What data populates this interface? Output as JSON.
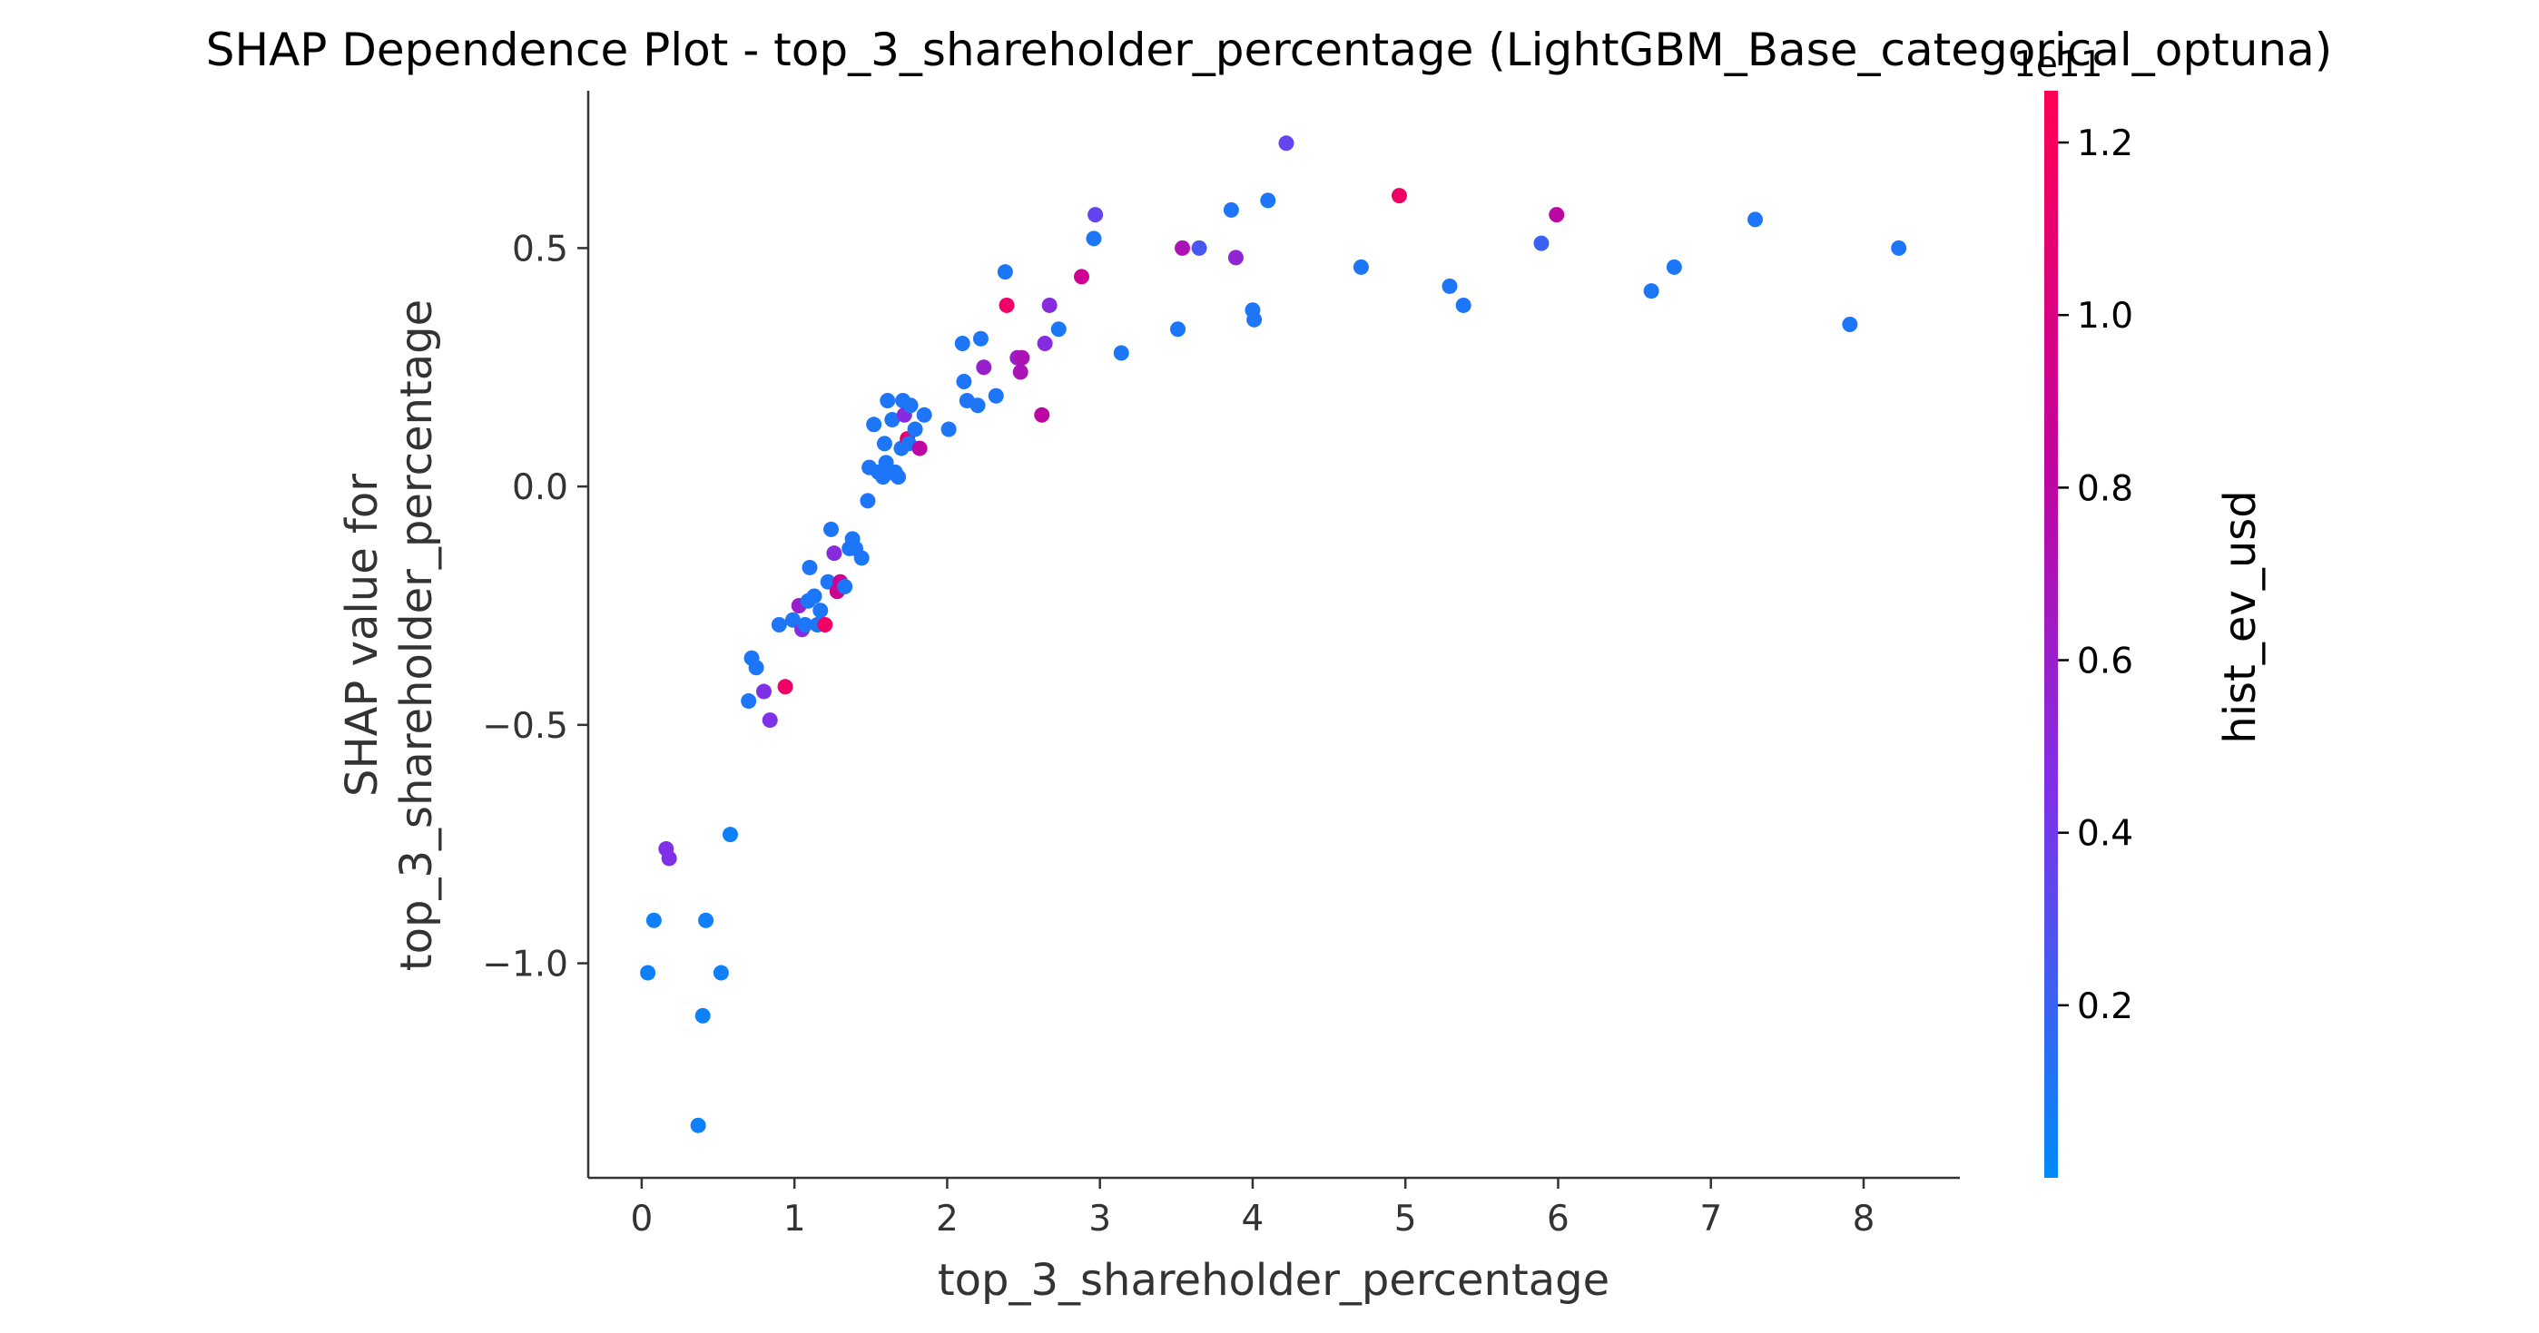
{
  "chart_data": {
    "type": "scatter",
    "title": "SHAP Dependence Plot - top_3_shareholder_percentage (LightGBM_Base_categorical_optuna)",
    "xlabel": "top_3_shareholder_percentage",
    "ylabel_line1": "SHAP value for",
    "ylabel_line2": "top_3_shareholder_percentage",
    "xlim": [
      -0.35,
      8.63
    ],
    "ylim": [
      -1.45,
      0.83
    ],
    "xticks": [
      0,
      1,
      2,
      3,
      4,
      5,
      6,
      7,
      8
    ],
    "yticks": [
      -1.0,
      -0.5,
      0.0,
      0.5
    ],
    "xtick_labels": [
      "0",
      "1",
      "2",
      "3",
      "4",
      "5",
      "6",
      "7",
      "8"
    ],
    "ytick_labels": [
      "−1.0",
      "−0.5",
      "0.0",
      "0.5"
    ],
    "colorbar": {
      "label": "hist_ev_usd",
      "offset_text": "1e11",
      "range": [
        0.0,
        1.26
      ],
      "ticks": [
        0.2,
        0.4,
        0.6,
        0.8,
        1.0,
        1.2
      ],
      "tick_labels": [
        "0.2",
        "0.4",
        "0.6",
        "0.8",
        "1.0",
        "1.2"
      ],
      "colors": [
        "#008afb",
        "#7d32ea",
        "#c0059f",
        "#ff0052"
      ]
    },
    "grid": false,
    "legend": "none",
    "points": [
      [
        0.04,
        -1.02,
        0.05
      ],
      [
        0.08,
        -0.91,
        0.05
      ],
      [
        0.16,
        -0.76,
        0.45
      ],
      [
        0.18,
        -0.78,
        0.45
      ],
      [
        0.37,
        -1.34,
        0.05
      ],
      [
        0.4,
        -1.11,
        0.05
      ],
      [
        0.42,
        -0.91,
        0.05
      ],
      [
        0.52,
        -1.02,
        0.05
      ],
      [
        0.58,
        -0.73,
        0.05
      ],
      [
        0.7,
        -0.45,
        0.1
      ],
      [
        0.72,
        -0.36,
        0.1
      ],
      [
        0.75,
        -0.38,
        0.1
      ],
      [
        0.8,
        -0.43,
        0.45
      ],
      [
        0.84,
        -0.49,
        0.45
      ],
      [
        0.9,
        -0.29,
        0.1
      ],
      [
        0.94,
        -0.42,
        1.15
      ],
      [
        0.99,
        -0.28,
        0.1
      ],
      [
        1.03,
        -0.25,
        0.6
      ],
      [
        1.05,
        -0.3,
        0.5
      ],
      [
        1.07,
        -0.29,
        0.1
      ],
      [
        1.09,
        -0.24,
        0.1
      ],
      [
        1.1,
        -0.17,
        0.1
      ],
      [
        1.13,
        -0.23,
        0.1
      ],
      [
        1.15,
        -0.29,
        0.1
      ],
      [
        1.17,
        -0.26,
        0.1
      ],
      [
        1.2,
        -0.29,
        1.15
      ],
      [
        1.22,
        -0.2,
        0.1
      ],
      [
        1.24,
        -0.09,
        0.1
      ],
      [
        1.26,
        -0.14,
        0.5
      ],
      [
        1.28,
        -0.22,
        0.9
      ],
      [
        1.3,
        -0.2,
        0.9
      ],
      [
        1.33,
        -0.21,
        0.1
      ],
      [
        1.36,
        -0.13,
        0.1
      ],
      [
        1.38,
        -0.11,
        0.1
      ],
      [
        1.4,
        -0.13,
        0.1
      ],
      [
        1.44,
        -0.15,
        0.1
      ],
      [
        1.48,
        -0.03,
        0.1
      ],
      [
        1.49,
        0.04,
        0.1
      ],
      [
        1.52,
        0.13,
        0.1
      ],
      [
        1.55,
        0.03,
        0.1
      ],
      [
        1.58,
        0.02,
        0.1
      ],
      [
        1.59,
        0.09,
        0.1
      ],
      [
        1.6,
        0.05,
        0.1
      ],
      [
        1.61,
        0.18,
        0.1
      ],
      [
        1.63,
        0.03,
        0.1
      ],
      [
        1.64,
        0.14,
        0.1
      ],
      [
        1.66,
        0.03,
        0.1
      ],
      [
        1.68,
        0.02,
        0.1
      ],
      [
        1.7,
        0.08,
        0.1
      ],
      [
        1.71,
        0.18,
        0.1
      ],
      [
        1.72,
        0.15,
        0.5
      ],
      [
        1.74,
        0.1,
        1.1
      ],
      [
        1.75,
        0.09,
        0.1
      ],
      [
        1.76,
        0.17,
        0.1
      ],
      [
        1.79,
        0.12,
        0.1
      ],
      [
        1.82,
        0.08,
        0.8
      ],
      [
        1.85,
        0.15,
        0.1
      ],
      [
        2.01,
        0.12,
        0.1
      ],
      [
        2.1,
        0.3,
        0.1
      ],
      [
        2.11,
        0.22,
        0.1
      ],
      [
        2.13,
        0.18,
        0.1
      ],
      [
        2.2,
        0.17,
        0.1
      ],
      [
        2.22,
        0.31,
        0.1
      ],
      [
        2.24,
        0.25,
        0.6
      ],
      [
        2.32,
        0.19,
        0.1
      ],
      [
        2.38,
        0.45,
        0.1
      ],
      [
        2.39,
        0.38,
        1.15
      ],
      [
        2.46,
        0.27,
        0.6
      ],
      [
        2.48,
        0.24,
        0.7
      ],
      [
        2.49,
        0.27,
        0.7
      ],
      [
        2.62,
        0.15,
        0.8
      ],
      [
        2.64,
        0.3,
        0.5
      ],
      [
        2.67,
        0.38,
        0.5
      ],
      [
        2.73,
        0.33,
        0.1
      ],
      [
        2.88,
        0.44,
        0.9
      ],
      [
        2.96,
        0.52,
        0.1
      ],
      [
        2.97,
        0.57,
        0.35
      ],
      [
        3.14,
        0.28,
        0.1
      ],
      [
        3.51,
        0.33,
        0.1
      ],
      [
        3.54,
        0.5,
        0.7
      ],
      [
        3.65,
        0.5,
        0.25
      ],
      [
        3.86,
        0.58,
        0.1
      ],
      [
        3.89,
        0.48,
        0.55
      ],
      [
        4.0,
        0.37,
        0.1
      ],
      [
        4.01,
        0.35,
        0.1
      ],
      [
        4.1,
        0.6,
        0.1
      ],
      [
        4.22,
        0.72,
        0.35
      ],
      [
        4.71,
        0.46,
        0.1
      ],
      [
        4.96,
        0.61,
        1.15
      ],
      [
        5.29,
        0.42,
        0.1
      ],
      [
        5.38,
        0.38,
        0.1
      ],
      [
        5.89,
        0.51,
        0.2
      ],
      [
        5.99,
        0.57,
        0.8
      ],
      [
        6.61,
        0.41,
        0.1
      ],
      [
        6.76,
        0.46,
        0.1
      ],
      [
        7.29,
        0.56,
        0.1
      ],
      [
        7.91,
        0.34,
        0.1
      ],
      [
        8.23,
        0.5,
        0.1
      ]
    ]
  }
}
